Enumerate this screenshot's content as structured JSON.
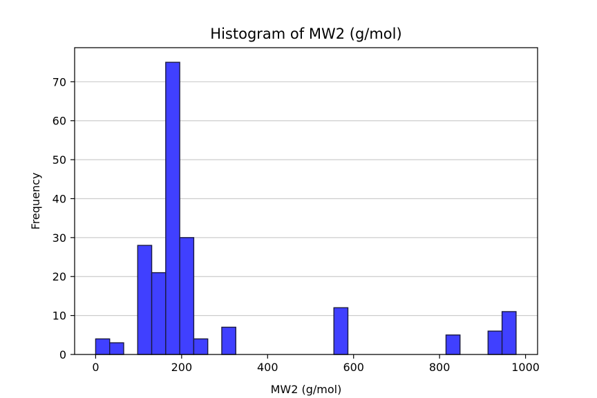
{
  "chart_data": {
    "type": "bar",
    "title": "Histogram of MW2 (g/mol)",
    "xlabel": "MW2 (g/mol)",
    "ylabel": "Frequency",
    "xlim": [
      -48.9,
      1028
    ],
    "ylim": [
      0,
      78.75
    ],
    "xticks": [
      0,
      200,
      400,
      600,
      800,
      1000
    ],
    "yticks": [
      0,
      10,
      20,
      30,
      40,
      50,
      60,
      70
    ],
    "grid": "horizontal",
    "bar_color": "#4040ff",
    "edge_color": "#1a1a40",
    "bins": [
      {
        "x0": 0,
        "x1": 32.6,
        "count": 4
      },
      {
        "x0": 32.6,
        "x1": 65.2,
        "count": 3
      },
      {
        "x0": 65.2,
        "x1": 97.8,
        "count": 0
      },
      {
        "x0": 97.8,
        "x1": 130.4,
        "count": 28
      },
      {
        "x0": 130.4,
        "x1": 163.0,
        "count": 21
      },
      {
        "x0": 163.0,
        "x1": 195.6,
        "count": 75
      },
      {
        "x0": 195.6,
        "x1": 228.2,
        "count": 30
      },
      {
        "x0": 228.2,
        "x1": 260.8,
        "count": 4
      },
      {
        "x0": 260.8,
        "x1": 293.4,
        "count": 0
      },
      {
        "x0": 293.4,
        "x1": 326.0,
        "count": 7
      },
      {
        "x0": 326.0,
        "x1": 358.6,
        "count": 0
      },
      {
        "x0": 358.6,
        "x1": 391.2,
        "count": 0
      },
      {
        "x0": 391.2,
        "x1": 423.8,
        "count": 0
      },
      {
        "x0": 423.8,
        "x1": 456.4,
        "count": 0
      },
      {
        "x0": 456.4,
        "x1": 489.0,
        "count": 0
      },
      {
        "x0": 489.0,
        "x1": 521.6,
        "count": 0
      },
      {
        "x0": 521.6,
        "x1": 554.2,
        "count": 0
      },
      {
        "x0": 554.2,
        "x1": 586.8,
        "count": 12
      },
      {
        "x0": 586.8,
        "x1": 619.4,
        "count": 0
      },
      {
        "x0": 619.4,
        "x1": 652.0,
        "count": 0
      },
      {
        "x0": 652.0,
        "x1": 684.6,
        "count": 0
      },
      {
        "x0": 684.6,
        "x1": 717.2,
        "count": 0
      },
      {
        "x0": 717.2,
        "x1": 749.8,
        "count": 0
      },
      {
        "x0": 749.8,
        "x1": 782.4,
        "count": 0
      },
      {
        "x0": 782.4,
        "x1": 815.0,
        "count": 0
      },
      {
        "x0": 815.0,
        "x1": 847.6,
        "count": 5
      },
      {
        "x0": 847.6,
        "x1": 880.2,
        "count": 0
      },
      {
        "x0": 880.2,
        "x1": 912.8,
        "count": 0
      },
      {
        "x0": 912.8,
        "x1": 945.4,
        "count": 6
      },
      {
        "x0": 945.4,
        "x1": 978.0,
        "count": 11
      }
    ]
  }
}
